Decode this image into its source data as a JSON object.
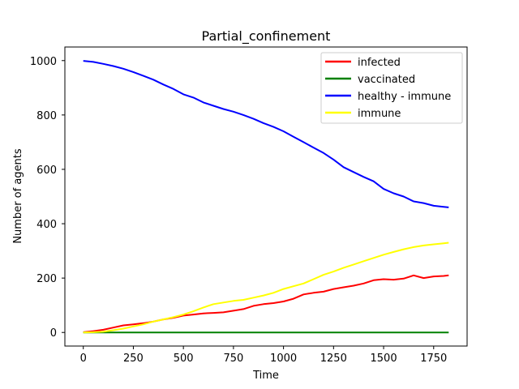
{
  "chart_data": {
    "type": "line",
    "title": "Partial_confinement",
    "xlabel": "Time",
    "ylabel": "Number of agents",
    "xlim": [
      -92,
      1917
    ],
    "ylim": [
      -50,
      1050
    ],
    "xticks": [
      0,
      250,
      500,
      750,
      1000,
      1250,
      1500,
      1750
    ],
    "yticks": [
      0,
      200,
      400,
      600,
      800,
      1000
    ],
    "grid": false,
    "legend_position": "top-right",
    "series": [
      {
        "name": "infected",
        "color": "#ff0000",
        "x": [
          0,
          50,
          100,
          150,
          200,
          250,
          300,
          350,
          400,
          450,
          500,
          550,
          600,
          650,
          700,
          750,
          800,
          850,
          900,
          950,
          1000,
          1050,
          1100,
          1150,
          1200,
          1250,
          1300,
          1350,
          1400,
          1450,
          1500,
          1550,
          1600,
          1650,
          1700,
          1750,
          1800,
          1825
        ],
        "y": [
          1,
          5,
          10,
          18,
          26,
          30,
          34,
          40,
          48,
          54,
          62,
          66,
          70,
          72,
          74,
          80,
          86,
          98,
          104,
          108,
          114,
          124,
          140,
          146,
          150,
          160,
          166,
          172,
          180,
          192,
          196,
          194,
          198,
          210,
          200,
          206,
          208,
          210
        ]
      },
      {
        "name": "vaccinated",
        "color": "#008000",
        "x": [
          0,
          1825
        ],
        "y": [
          0,
          0
        ]
      },
      {
        "name": "healthy - immune",
        "color": "#0000ff",
        "x": [
          0,
          50,
          100,
          150,
          200,
          250,
          300,
          350,
          400,
          450,
          500,
          550,
          600,
          650,
          700,
          750,
          800,
          850,
          900,
          950,
          1000,
          1050,
          1100,
          1150,
          1200,
          1250,
          1300,
          1350,
          1400,
          1450,
          1500,
          1550,
          1600,
          1650,
          1700,
          1750,
          1800,
          1825
        ],
        "y": [
          999,
          995,
          988,
          980,
          970,
          958,
          944,
          930,
          912,
          896,
          876,
          864,
          846,
          834,
          822,
          812,
          800,
          786,
          770,
          756,
          740,
          720,
          700,
          680,
          660,
          636,
          608,
          590,
          572,
          556,
          528,
          512,
          500,
          482,
          476,
          466,
          462,
          460
        ]
      },
      {
        "name": "immune",
        "color": "#ffff00",
        "x": [
          0,
          50,
          100,
          150,
          200,
          250,
          300,
          350,
          400,
          450,
          500,
          550,
          600,
          650,
          700,
          750,
          800,
          850,
          900,
          950,
          1000,
          1050,
          1100,
          1150,
          1200,
          1250,
          1300,
          1350,
          1400,
          1450,
          1500,
          1550,
          1600,
          1650,
          1700,
          1750,
          1800,
          1825
        ],
        "y": [
          0,
          1,
          3,
          8,
          14,
          22,
          30,
          40,
          48,
          56,
          66,
          78,
          92,
          104,
          110,
          116,
          120,
          128,
          136,
          146,
          160,
          170,
          180,
          196,
          212,
          224,
          238,
          250,
          262,
          274,
          286,
          296,
          306,
          314,
          320,
          324,
          328,
          330
        ]
      }
    ]
  }
}
